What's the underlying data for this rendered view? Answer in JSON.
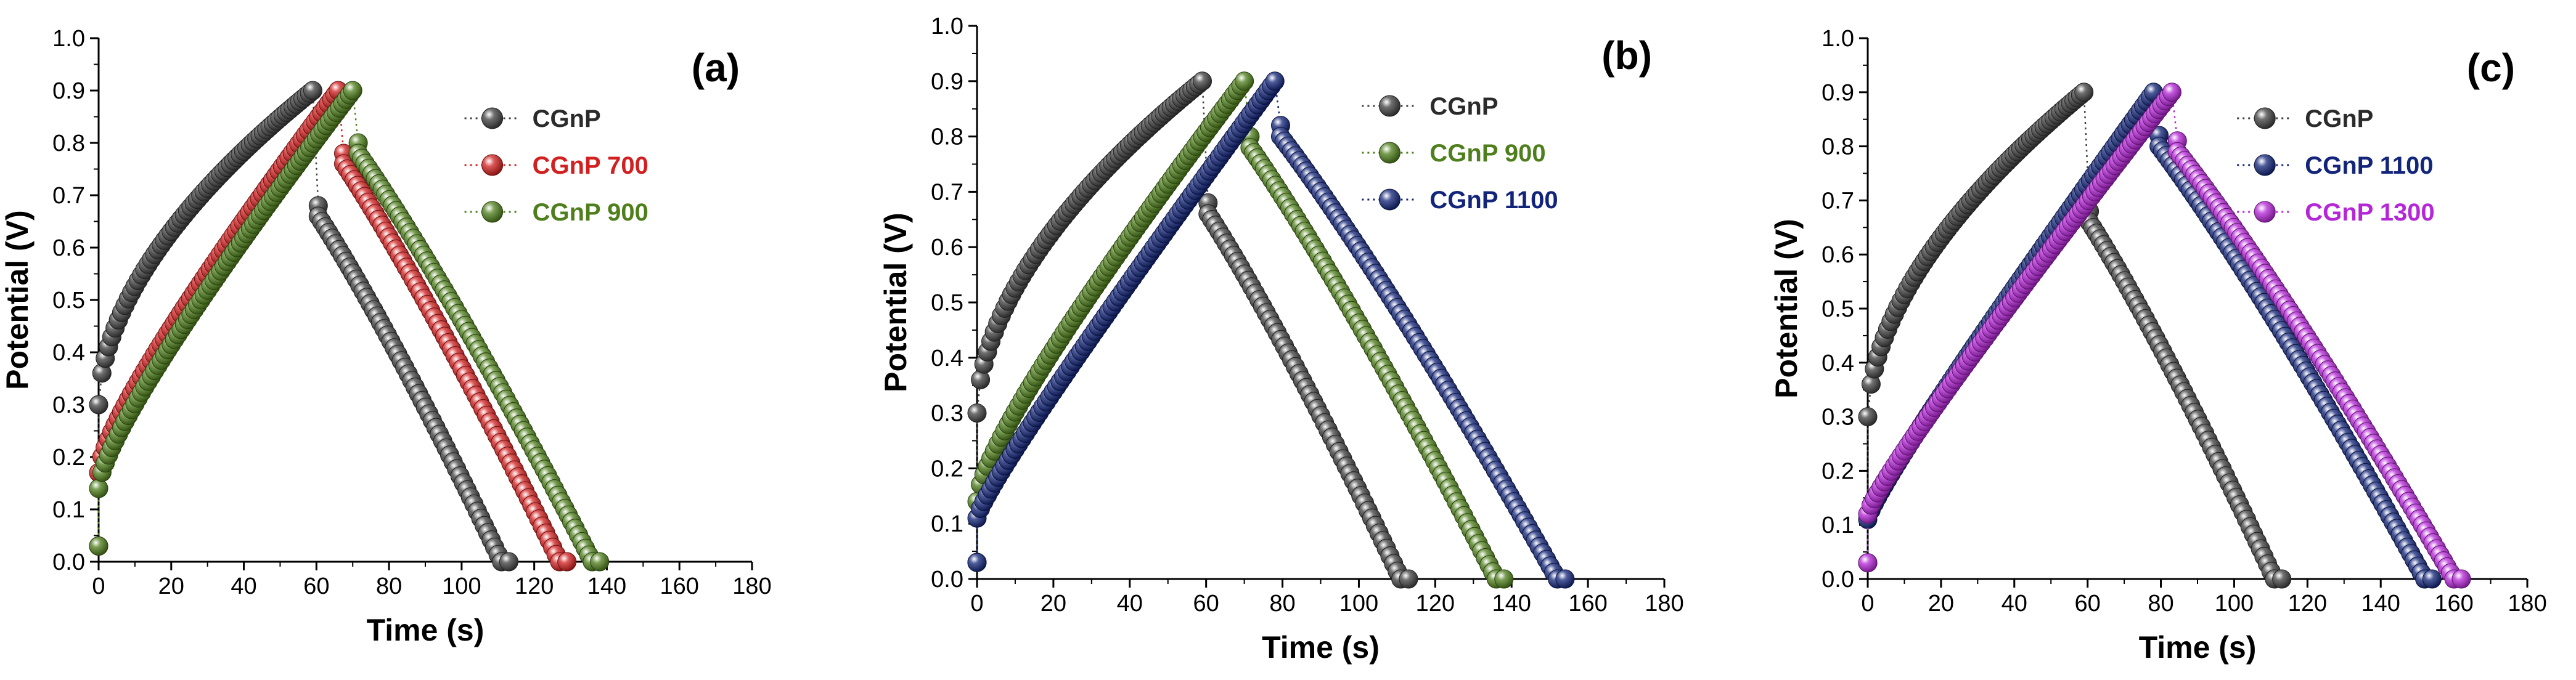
{
  "colors": {
    "CGnP": "#404040",
    "CGnP 700": "#d21f1f",
    "CGnP 900": "#4f7f1c",
    "CGnP 1100": "#13257a",
    "CGnP 1300": "#b526d8"
  },
  "chart_data": [
    {
      "type": "scatter",
      "panel_label": "(a)",
      "xlabel": "Time (s)",
      "ylabel": "Potential (V)",
      "xlim": [
        0,
        180
      ],
      "ylim": [
        0,
        1.0
      ],
      "x_ticks": [
        "0",
        "20",
        "40",
        "60",
        "80",
        "100",
        "120",
        "140",
        "160",
        "180"
      ],
      "y_ticks": [
        "0.0",
        "0.1",
        "0.2",
        "0.3",
        "0.4",
        "0.5",
        "0.6",
        "0.7",
        "0.8",
        "0.9",
        "1.0"
      ],
      "legend_position": "top-right",
      "series": [
        {
          "name": "CGnP",
          "color_key": "CGnP",
          "charge_time": 59,
          "peak_x": 59,
          "drop_v": 0.66,
          "end_x": 111,
          "start_v": 0.03,
          "charge_start_v": 0.3,
          "charge_shape": "sqrt"
        },
        {
          "name": "CGnP 700",
          "color_key": "CGnP 700",
          "charge_time": 66,
          "peak_x": 66,
          "drop_v": 0.76,
          "end_x": 127,
          "start_v": 0.03,
          "charge_start_v": 0.17,
          "charge_shape": "mix"
        },
        {
          "name": "CGnP 900",
          "color_key": "CGnP 900",
          "charge_time": 70,
          "peak_x": 70,
          "drop_v": 0.78,
          "end_x": 136,
          "start_v": 0.03,
          "charge_start_v": 0.14,
          "charge_shape": "mix"
        }
      ]
    },
    {
      "type": "scatter",
      "panel_label": "(b)",
      "xlabel": "Time (s)",
      "ylabel": "Potential (V)",
      "xlim": [
        0,
        180
      ],
      "ylim": [
        0,
        1.0
      ],
      "x_ticks": [
        "0",
        "20",
        "40",
        "60",
        "80",
        "100",
        "120",
        "140",
        "160",
        "180"
      ],
      "y_ticks": [
        "0.0",
        "0.1",
        "0.2",
        "0.3",
        "0.4",
        "0.5",
        "0.6",
        "0.7",
        "0.8",
        "0.9",
        "1.0"
      ],
      "legend_position": "top-right",
      "series": [
        {
          "name": "CGnP",
          "color_key": "CGnP",
          "charge_time": 59,
          "peak_x": 59,
          "drop_v": 0.66,
          "end_x": 111,
          "start_v": 0.03,
          "charge_start_v": 0.3,
          "charge_shape": "sqrt"
        },
        {
          "name": "CGnP 900",
          "color_key": "CGnP 900",
          "charge_time": 70,
          "peak_x": 70,
          "drop_v": 0.78,
          "end_x": 136,
          "start_v": 0.03,
          "charge_start_v": 0.14,
          "charge_shape": "mix"
        },
        {
          "name": "CGnP 1100",
          "color_key": "CGnP 1100",
          "charge_time": 78,
          "peak_x": 78,
          "drop_v": 0.8,
          "end_x": 152,
          "start_v": 0.03,
          "charge_start_v": 0.11,
          "charge_shape": "linear"
        }
      ]
    },
    {
      "type": "scatter",
      "panel_label": "(c)",
      "xlabel": "Time (s)",
      "ylabel": "Potential (V)",
      "xlim": [
        0,
        180
      ],
      "ylim": [
        0,
        1.0
      ],
      "x_ticks": [
        "0",
        "20",
        "40",
        "60",
        "80",
        "100",
        "120",
        "140",
        "160",
        "180"
      ],
      "y_ticks": [
        "0.0",
        "0.1",
        "0.2",
        "0.3",
        "0.4",
        "0.5",
        "0.6",
        "0.7",
        "0.8",
        "0.9",
        "1.0"
      ],
      "legend_position": "top-right",
      "series": [
        {
          "name": "CGnP",
          "color_key": "CGnP",
          "charge_time": 59,
          "peak_x": 59,
          "drop_v": 0.66,
          "end_x": 111,
          "start_v": 0.03,
          "charge_start_v": 0.3,
          "charge_shape": "sqrt"
        },
        {
          "name": "CGnP 1100",
          "color_key": "CGnP 1100",
          "charge_time": 78,
          "peak_x": 78,
          "drop_v": 0.8,
          "end_x": 152,
          "start_v": 0.03,
          "charge_start_v": 0.11,
          "charge_shape": "linear"
        },
        {
          "name": "CGnP 1300",
          "color_key": "CGnP 1300",
          "charge_time": 83,
          "peak_x": 83,
          "drop_v": 0.79,
          "end_x": 160,
          "start_v": 0.03,
          "charge_start_v": 0.12,
          "charge_shape": "linear"
        }
      ]
    }
  ]
}
